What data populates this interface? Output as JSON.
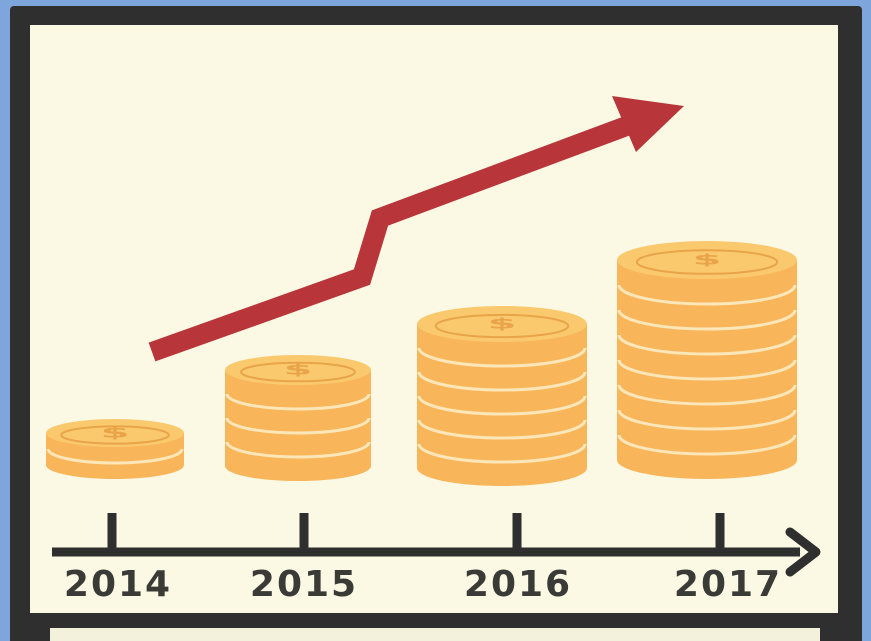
{
  "illustration": {
    "years": [
      "2014",
      "2015",
      "2016",
      "2017"
    ],
    "coin_stack_layers": [
      2,
      4,
      6,
      8
    ],
    "trend": "up",
    "colors": {
      "background_border": "#7fa6dc",
      "frame": "#2f2f2f",
      "canvas": "#fbf8e4",
      "coin": "#f8b55a",
      "coin_top": "#fbc96d",
      "coin_edge_line": "#fde6b8",
      "trend_arrow": "#b8363a",
      "axis": "#2f2f2f"
    },
    "icons": [
      "dollar-sign-icon",
      "trend-arrow-icon",
      "timeline-axis-icon"
    ]
  }
}
